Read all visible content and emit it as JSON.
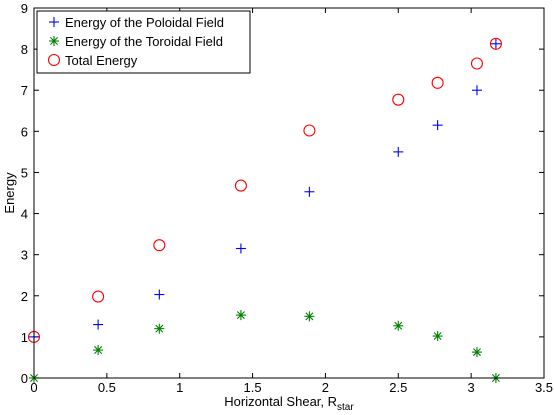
{
  "chart_data": {
    "type": "scatter",
    "title": "",
    "xlabel_main": "Horizontal Shear, R",
    "xlabel_sub": "star",
    "ylabel": "Energy",
    "xlim": [
      0,
      3.5
    ],
    "ylim": [
      0,
      9
    ],
    "xticks": [
      "0",
      "0.5",
      "1",
      "1.5",
      "2",
      "2.5",
      "3",
      "3.5"
    ],
    "yticks": [
      "0",
      "1",
      "2",
      "3",
      "4",
      "5",
      "6",
      "7",
      "8",
      "9"
    ],
    "grid": false,
    "legend_position": "top-left",
    "series": [
      {
        "name": "Energy of the Poloidal Field",
        "marker": "plus",
        "color": "#0000ff",
        "x": [
          0,
          0.44,
          0.86,
          1.42,
          1.89,
          2.5,
          2.77,
          3.04,
          3.17
        ],
        "y": [
          1.0,
          1.3,
          2.03,
          3.15,
          4.53,
          5.5,
          6.15,
          7.0,
          8.13
        ]
      },
      {
        "name": "Energy of the Toroidal Field",
        "marker": "asterisk",
        "color": "#008000",
        "x": [
          0,
          0.44,
          0.86,
          1.42,
          1.89,
          2.5,
          2.77,
          3.04,
          3.17
        ],
        "y": [
          0.0,
          0.68,
          1.2,
          1.53,
          1.5,
          1.27,
          1.02,
          0.63,
          0.0
        ]
      },
      {
        "name": "Total Energy",
        "marker": "circle",
        "color": "#ff0000",
        "x": [
          0,
          0.44,
          0.86,
          1.42,
          1.89,
          2.5,
          2.77,
          3.04,
          3.17
        ],
        "y": [
          1.0,
          1.98,
          3.23,
          4.68,
          6.02,
          6.77,
          7.18,
          7.65,
          8.13
        ]
      }
    ]
  }
}
